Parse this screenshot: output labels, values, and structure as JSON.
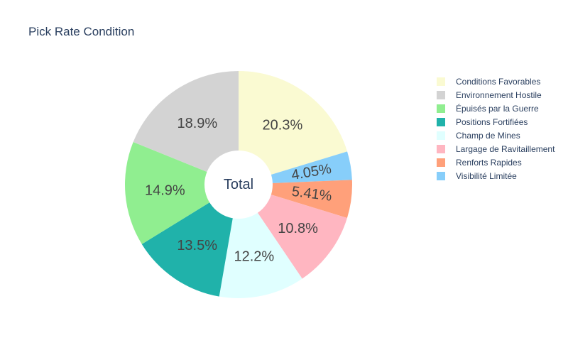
{
  "chart_data": {
    "type": "pie",
    "title": "Pick Rate Condition",
    "center_text": "Total",
    "legend_position": "right",
    "slices": [
      {
        "label": "Conditions Favorables",
        "value": 20.3,
        "text": "20.3%",
        "color": "#fafad2"
      },
      {
        "label": "Visibilité Limitée",
        "value": 4.05,
        "text": "4.05%",
        "color": "#87cefa"
      },
      {
        "label": "Renforts Rapides",
        "value": 5.41,
        "text": "5.41%",
        "color": "#ffa07a"
      },
      {
        "label": "Largage de Ravitaillement",
        "value": 10.8,
        "text": "10.8%",
        "color": "#ffb6c1"
      },
      {
        "label": "Champ de Mines",
        "value": 12.2,
        "text": "12.2%",
        "color": "#e0ffff"
      },
      {
        "label": "Positions Fortifiées",
        "value": 13.5,
        "text": "13.5%",
        "color": "#20b2aa"
      },
      {
        "label": "Épuisés par la Guerre",
        "value": 14.9,
        "text": "14.9%",
        "color": "#90ee90"
      },
      {
        "label": "Environnement Hostile",
        "value": 18.9,
        "text": "18.9%",
        "color": "#d3d3d3"
      }
    ],
    "legend_order": [
      "Conditions Favorables",
      "Environnement Hostile",
      "Épuisés par la Guerre",
      "Positions Fortifiées",
      "Champ de Mines",
      "Largage de Ravitaillement",
      "Renforts Rapides",
      "Visibilité Limitée"
    ]
  }
}
